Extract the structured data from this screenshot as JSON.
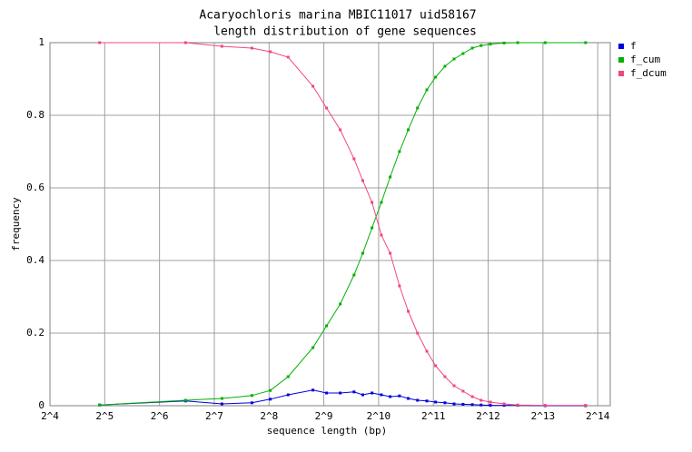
{
  "chart_data": {
    "type": "line",
    "title": "Acaryochloris marina MBIC11017 uid58167",
    "subtitle": "length distribution of gene sequences",
    "x_label": "sequence length (bp)",
    "y_label": "frequency",
    "log_x": true,
    "grid": true,
    "legend": "top-right",
    "xlim": [
      16,
      19200
    ],
    "xticks": [
      {
        "value": 16,
        "label": "2^4"
      },
      {
        "value": 32,
        "label": "2^5"
      },
      {
        "value": 64,
        "label": "2^6"
      },
      {
        "value": 128,
        "label": "2^7"
      },
      {
        "value": 256,
        "label": "2^8"
      },
      {
        "value": 512,
        "label": "2^9"
      },
      {
        "value": 1024,
        "label": "2^10"
      },
      {
        "value": 2048,
        "label": "2^11"
      },
      {
        "value": 4096,
        "label": "2^12"
      },
      {
        "value": 8192,
        "label": "2^13"
      },
      {
        "value": 16384,
        "label": "2^14"
      }
    ],
    "ylim": [
      0,
      1
    ],
    "yticks": [
      0,
      0.2,
      0.4,
      0.6,
      0.8,
      1
    ],
    "x": [
      30,
      89,
      141,
      206,
      260,
      326,
      446,
      530,
      630,
      750,
      838,
      942,
      1060,
      1185,
      1333,
      1490,
      1675,
      1885,
      2105,
      2370,
      2660,
      2980,
      3350,
      3745,
      4210,
      5010,
      5950,
      8420,
      14050
    ],
    "series": [
      {
        "name": "f",
        "color": "#0000e0",
        "values": [
          0.002,
          0.013,
          0.005,
          0.008,
          0.018,
          0.03,
          0.043,
          0.035,
          0.035,
          0.038,
          0.03,
          0.035,
          0.03,
          0.025,
          0.027,
          0.02,
          0.015,
          0.013,
          0.01,
          0.008,
          0.005,
          0.004,
          0.003,
          0.002,
          0.001,
          0.001,
          0.001,
          0,
          0
        ]
      },
      {
        "name": "f_cum",
        "color": "#00b000",
        "values": [
          0.002,
          0.015,
          0.02,
          0.028,
          0.042,
          0.08,
          0.16,
          0.22,
          0.28,
          0.36,
          0.42,
          0.49,
          0.56,
          0.63,
          0.7,
          0.76,
          0.82,
          0.87,
          0.905,
          0.935,
          0.955,
          0.97,
          0.985,
          0.992,
          0.996,
          0.999,
          1,
          1,
          1
        ]
      },
      {
        "name": "f_dcum",
        "color": "#f04878",
        "values": [
          1,
          1,
          0.99,
          0.985,
          0.975,
          0.96,
          0.88,
          0.82,
          0.76,
          0.68,
          0.62,
          0.56,
          0.47,
          0.42,
          0.33,
          0.26,
          0.2,
          0.15,
          0.11,
          0.08,
          0.055,
          0.04,
          0.025,
          0.015,
          0.01,
          0.005,
          0.002,
          0.001,
          0.001
        ]
      }
    ]
  }
}
